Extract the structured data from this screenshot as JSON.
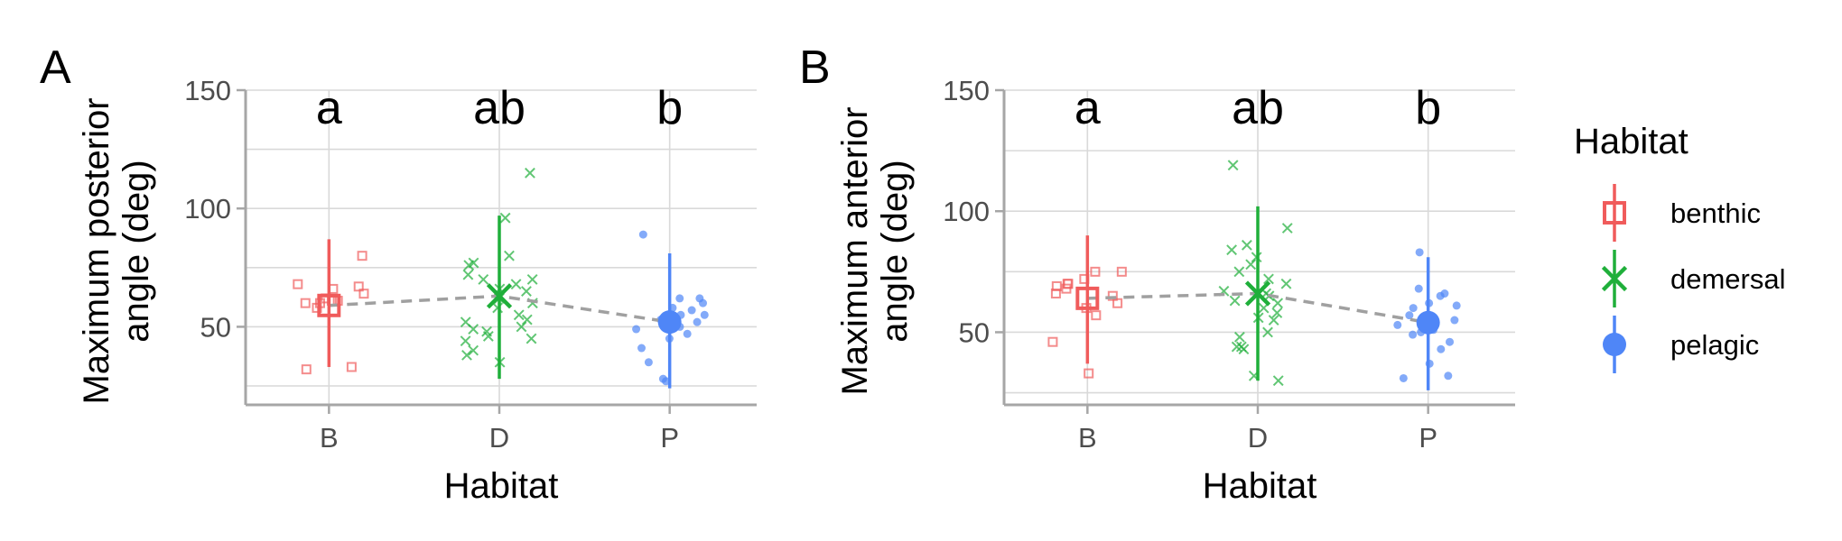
{
  "legend": {
    "title": "Habitat",
    "items": [
      {
        "key": "benthic",
        "label": "benthic",
        "color": "#F05B5B",
        "shape": "open-square"
      },
      {
        "key": "demersal",
        "label": "demersal",
        "color": "#1FAF3A",
        "shape": "cross"
      },
      {
        "key": "pelagic",
        "label": "pelagic",
        "color": "#4F86F7",
        "shape": "filled-circle"
      }
    ]
  },
  "chart_data": [
    {
      "panel": "A",
      "type": "scatter",
      "xlabel": "Habitat",
      "ylabel_lines": [
        "Maximum posterior",
        "angle (deg)"
      ],
      "categories": [
        "B",
        "D",
        "P"
      ],
      "ylim": [
        17,
        150
      ],
      "yticks": [
        50,
        100,
        150
      ],
      "grid": true,
      "significance_letters": [
        "a",
        "ab",
        "b"
      ],
      "summary": [
        {
          "category": "B",
          "habitat": "benthic",
          "mean": 59,
          "lower": 33,
          "upper": 87
        },
        {
          "category": "D",
          "habitat": "demersal",
          "mean": 63,
          "lower": 28,
          "upper": 97
        },
        {
          "category": "P",
          "habitat": "pelagic",
          "mean": 52,
          "lower": 24,
          "upper": 81
        }
      ],
      "points": [
        {
          "category": "B",
          "habitat": "benthic",
          "values": [
            67,
            68,
            66,
            60,
            62,
            61,
            60,
            58,
            61,
            80,
            33,
            32,
            64
          ]
        },
        {
          "category": "D",
          "habitat": "demersal",
          "values": [
            115,
            96,
            80,
            77,
            76,
            72,
            70,
            68,
            65,
            62,
            60,
            58,
            55,
            53,
            52,
            50,
            48,
            46,
            45,
            44,
            40,
            38,
            35,
            70,
            66,
            49
          ]
        },
        {
          "category": "P",
          "habitat": "pelagic",
          "values": [
            89,
            62,
            60,
            58,
            57,
            55,
            53,
            52,
            50,
            49,
            47,
            45,
            41,
            35,
            28,
            27,
            62,
            55
          ]
        }
      ]
    },
    {
      "panel": "B",
      "type": "scatter",
      "xlabel": "Habitat",
      "ylabel_lines": [
        "Maximum anterior",
        "angle (deg)"
      ],
      "categories": [
        "B",
        "D",
        "P"
      ],
      "ylim": [
        20,
        150
      ],
      "yticks": [
        50,
        100,
        150
      ],
      "grid": true,
      "significance_letters": [
        "a",
        "ab",
        "b"
      ],
      "summary": [
        {
          "category": "B",
          "habitat": "benthic",
          "mean": 64,
          "lower": 37,
          "upper": 90
        },
        {
          "category": "D",
          "habitat": "demersal",
          "mean": 66,
          "lower": 30,
          "upper": 102
        },
        {
          "category": "P",
          "habitat": "pelagic",
          "mean": 54,
          "lower": 26,
          "upper": 81
        }
      ],
      "points": [
        {
          "category": "B",
          "habitat": "benthic",
          "values": [
            75,
            75,
            72,
            70,
            69,
            68,
            66,
            65,
            62,
            60,
            57,
            46,
            33,
            70
          ]
        },
        {
          "category": "D",
          "habitat": "demersal",
          "values": [
            119,
            93,
            86,
            84,
            81,
            78,
            75,
            72,
            70,
            67,
            65,
            62,
            60,
            58,
            56,
            55,
            50,
            48,
            44,
            43,
            44,
            32,
            30,
            63,
            66
          ]
        },
        {
          "category": "P",
          "habitat": "pelagic",
          "values": [
            83,
            68,
            66,
            65,
            62,
            60,
            57,
            55,
            53,
            51,
            49,
            46,
            43,
            37,
            32,
            31,
            61,
            50
          ]
        }
      ]
    }
  ]
}
